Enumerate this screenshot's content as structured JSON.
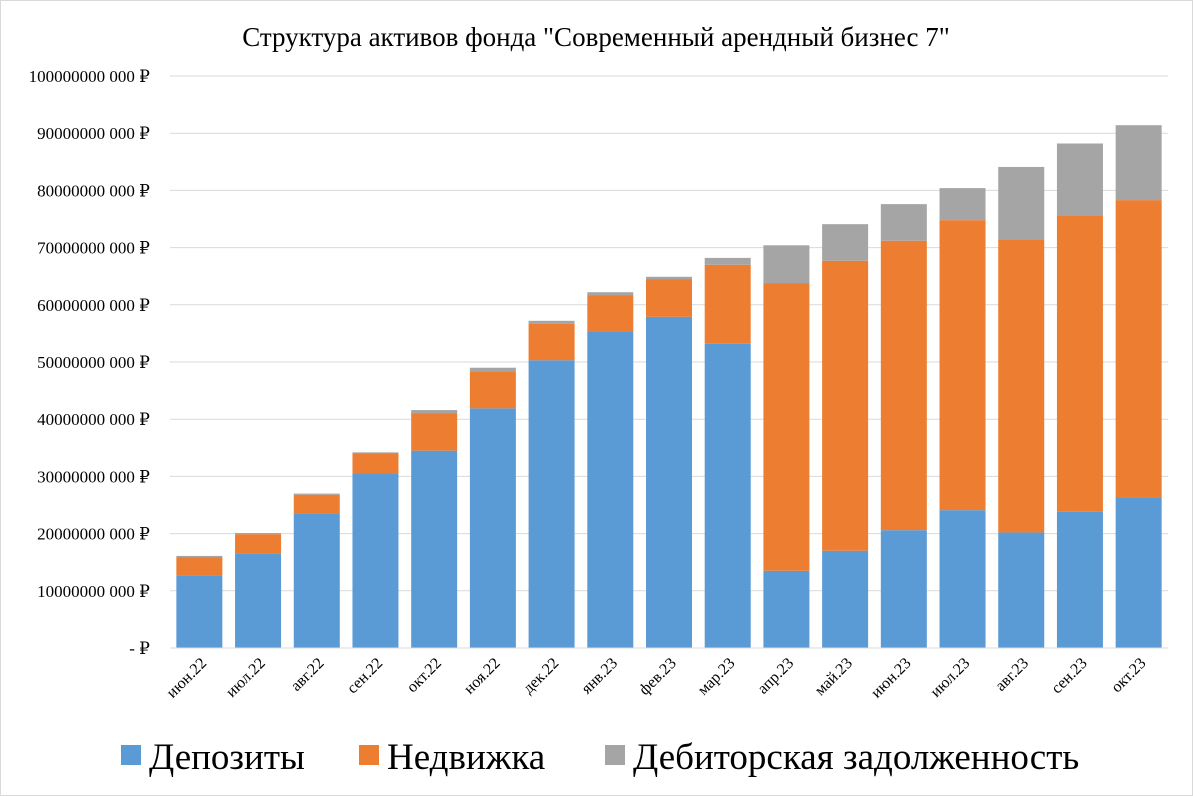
{
  "chart_data": {
    "type": "bar",
    "stacked": true,
    "title": "Структура  активов фонда \"Современный арендный бизнес 7\"",
    "xlabel": "",
    "ylabel": "",
    "ylim": [
      0,
      100000000
    ],
    "y_ticks": [
      0,
      10000000,
      20000000,
      30000000,
      40000000,
      50000000,
      60000000,
      70000000,
      80000000,
      90000000,
      100000000
    ],
    "y_tick_labels": [
      "-  ₽",
      "10000000 000 ₽",
      "20000000 000 ₽",
      "30000000 000 ₽",
      "40000000 000 ₽",
      "50000000 000 ₽",
      "60000000 000 ₽",
      "70000000 000 ₽",
      "80000000 000 ₽",
      "90000000 000 ₽",
      "100000000 000 ₽"
    ],
    "grid": true,
    "legend_position": "bottom",
    "categories": [
      "июн.22",
      "июл.22",
      "авг.22",
      "сен.22",
      "окт.22",
      "ноя.22",
      "дек.22",
      "янв.23",
      "фев.23",
      "мар.23",
      "апр.23",
      "май.23",
      "июн.23",
      "июл.23",
      "авг.23",
      "сен.23",
      "окт.23"
    ],
    "series": [
      {
        "name": "Депозиты",
        "color": "#5B9BD5",
        "values": [
          12700000,
          16500000,
          23500000,
          30500000,
          34500000,
          41900000,
          50300000,
          55400000,
          57900000,
          53200000,
          13500000,
          17000000,
          20600000,
          24100000,
          20200000,
          23800000,
          26300000
        ]
      },
      {
        "name": "Недвижка",
        "color": "#ED7D31",
        "values": [
          3200000,
          3400000,
          3300000,
          3500000,
          6500000,
          6500000,
          6400000,
          6300000,
          6600000,
          13800000,
          50300000,
          50700000,
          50600000,
          50700000,
          51200000,
          51800000,
          52000000
        ]
      },
      {
        "name": "Дебиторская задолженность",
        "color": "#A5A5A5",
        "values": [
          200000,
          200000,
          200000,
          200000,
          600000,
          600000,
          500000,
          500000,
          400000,
          1200000,
          6600000,
          6400000,
          6400000,
          5600000,
          12700000,
          12600000,
          13100000
        ]
      }
    ]
  }
}
